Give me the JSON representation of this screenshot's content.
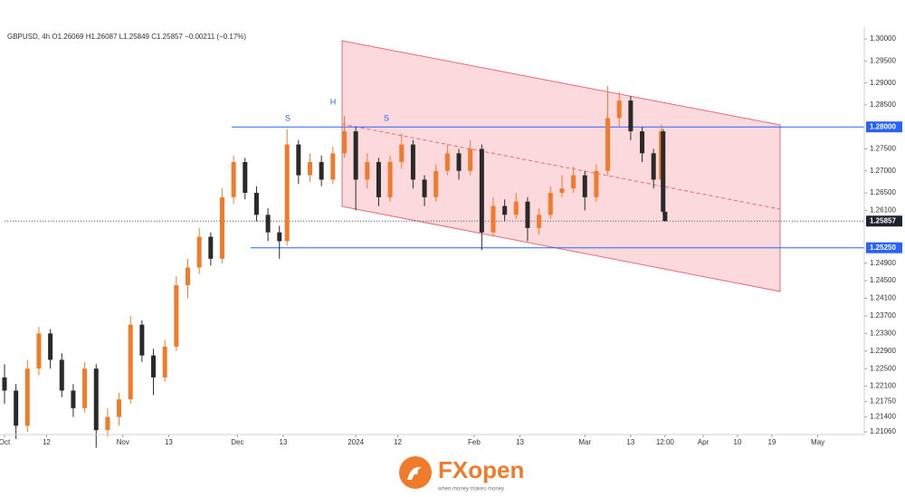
{
  "chart_data": {
    "type": "candlestick",
    "title": "GBPUSD, 4h  O1.26069  H1.26087  L1.25849  C1.25857  −0.00211 (−0.17%)",
    "x": [
      0,
      3,
      6,
      9,
      12,
      15,
      18,
      21,
      24,
      27,
      30,
      33,
      36,
      39,
      42,
      45,
      48,
      51,
      54,
      57,
      60,
      63,
      66,
      69,
      72,
      74,
      77,
      80,
      83,
      86,
      89,
      92,
      95,
      98,
      101,
      104,
      107,
      110,
      113,
      116,
      119,
      122,
      125,
      128,
      131,
      134,
      137,
      140,
      143,
      146,
      149,
      152,
      155,
      158,
      161,
      164,
      167,
      170,
      172,
      172.5,
      173
    ],
    "open": [
      1.223,
      1.22,
      1.212,
      1.225,
      1.233,
      1.227,
      1.22,
      1.216,
      1.225,
      1.211,
      1.214,
      1.218,
      1.235,
      1.228,
      1.223,
      1.23,
      1.244,
      1.248,
      1.255,
      1.25,
      1.264,
      1.272,
      1.265,
      1.26,
      1.256,
      1.254,
      1.276,
      1.269,
      1.272,
      1.268,
      1.274,
      1.279,
      1.268,
      1.272,
      1.264,
      1.272,
      1.276,
      1.268,
      1.264,
      1.27,
      1.274,
      1.27,
      1.275,
      1.256,
      1.262,
      1.26,
      1.263,
      1.257,
      1.26,
      1.265,
      1.266,
      1.269,
      1.264,
      1.27,
      1.282,
      1.286,
      1.279,
      1.274,
      1.268,
      1.279,
      1.26069
    ],
    "high": [
      1.226,
      1.2215,
      1.227,
      1.2345,
      1.234,
      1.2285,
      1.2215,
      1.2265,
      1.226,
      1.216,
      1.2195,
      1.237,
      1.236,
      1.2295,
      1.2315,
      1.246,
      1.25,
      1.257,
      1.256,
      1.266,
      1.2735,
      1.273,
      1.2665,
      1.2615,
      1.2575,
      1.2795,
      1.277,
      1.274,
      1.2735,
      1.2755,
      1.2825,
      1.28,
      1.274,
      1.273,
      1.2735,
      1.2785,
      1.277,
      1.269,
      1.2715,
      1.276,
      1.275,
      1.277,
      1.276,
      1.264,
      1.2635,
      1.265,
      1.264,
      1.2615,
      1.2665,
      1.269,
      1.271,
      1.27,
      1.2715,
      1.2893,
      1.288,
      1.287,
      1.28,
      1.275,
      1.2805,
      1.2795,
      1.26087
    ],
    "low": [
      1.217,
      1.209,
      1.2105,
      1.2235,
      1.225,
      1.2185,
      1.214,
      1.215,
      1.207,
      1.2095,
      1.212,
      1.217,
      1.2265,
      1.219,
      1.222,
      1.229,
      1.241,
      1.2465,
      1.2485,
      1.249,
      1.2625,
      1.2635,
      1.2585,
      1.254,
      1.25,
      1.253,
      1.267,
      1.2675,
      1.2665,
      1.267,
      1.273,
      1.261,
      1.266,
      1.262,
      1.263,
      1.2705,
      1.266,
      1.262,
      1.263,
      1.269,
      1.268,
      1.269,
      1.252,
      1.255,
      1.2585,
      1.259,
      1.254,
      1.2555,
      1.259,
      1.264,
      1.265,
      1.261,
      1.263,
      1.269,
      1.28,
      1.277,
      1.272,
      1.266,
      1.267,
      1.26,
      1.25849
    ],
    "close": [
      1.22,
      1.212,
      1.225,
      1.233,
      1.227,
      1.22,
      1.216,
      1.225,
      1.211,
      1.214,
      1.218,
      1.235,
      1.228,
      1.223,
      1.23,
      1.244,
      1.248,
      1.255,
      1.25,
      1.264,
      1.272,
      1.265,
      1.26,
      1.256,
      1.254,
      1.276,
      1.269,
      1.272,
      1.268,
      1.274,
      1.279,
      1.268,
      1.272,
      1.264,
      1.272,
      1.276,
      1.268,
      1.264,
      1.27,
      1.274,
      1.27,
      1.275,
      1.256,
      1.262,
      1.26,
      1.263,
      1.257,
      1.26,
      1.265,
      1.266,
      1.269,
      1.264,
      1.27,
      1.282,
      1.286,
      1.279,
      1.274,
      1.268,
      1.279,
      1.2607,
      1.25857
    ],
    "up_color": "#f07b2b",
    "down_color": "#2a2a2a",
    "xlim": [
      0,
      224
    ],
    "xticks": [
      {
        "value": 0,
        "label": "Oct"
      },
      {
        "value": 11,
        "label": "12"
      },
      {
        "value": 31,
        "label": "Nov"
      },
      {
        "value": 43,
        "label": "13"
      },
      {
        "value": 61,
        "label": "Dec"
      },
      {
        "value": 73,
        "label": "13"
      },
      {
        "value": 92,
        "label": "2024"
      },
      {
        "value": 103,
        "label": "12"
      },
      {
        "value": 123,
        "label": "Feb"
      },
      {
        "value": 135,
        "label": "13"
      },
      {
        "value": 152,
        "label": "Mar"
      },
      {
        "value": 164,
        "label": "13"
      },
      {
        "value": 173,
        "label": "12:00"
      },
      {
        "value": 183,
        "label": "Apr"
      },
      {
        "value": 192,
        "label": "10"
      },
      {
        "value": 201,
        "label": "19"
      },
      {
        "value": 213,
        "label": "May"
      }
    ],
    "ylim": [
      1.21,
      1.3027
    ],
    "yticks": [
      {
        "value": 1.3,
        "label": "1.30000"
      },
      {
        "value": 1.295,
        "label": "1.29500"
      },
      {
        "value": 1.29,
        "label": "1.29000"
      },
      {
        "value": 1.285,
        "label": "1.28500"
      },
      {
        "value": 1.275,
        "label": "1.27500"
      },
      {
        "value": 1.27,
        "label": "1.27000"
      },
      {
        "value": 1.265,
        "label": "1.26500"
      },
      {
        "value": 1.261,
        "label": "1.26100"
      },
      {
        "value": 1.249,
        "label": "1.24900"
      },
      {
        "value": 1.245,
        "label": "1.24500"
      },
      {
        "value": 1.241,
        "label": "1.24100"
      },
      {
        "value": 1.237,
        "label": "1.23700"
      },
      {
        "value": 1.233,
        "label": "1.23300"
      },
      {
        "value": 1.229,
        "label": "1.22900"
      },
      {
        "value": 1.225,
        "label": "1.22500"
      },
      {
        "value": 1.221,
        "label": "1.22100"
      },
      {
        "value": 1.2175,
        "label": "1.21750"
      },
      {
        "value": 1.214,
        "label": "1.21400"
      },
      {
        "value": 1.2106,
        "label": "1.21060"
      }
    ],
    "levels": [
      {
        "value": 1.28,
        "label": "1.28000"
      },
      {
        "value": 1.2525,
        "label": "1.25250"
      }
    ],
    "level_color": "#2962ff",
    "last_price": {
      "value": 1.25857,
      "label": "1.25857"
    },
    "annotations": [
      "S",
      "H",
      "S"
    ]
  },
  "brand": {
    "name": "FXopen",
    "tagline": "when money makes money"
  }
}
